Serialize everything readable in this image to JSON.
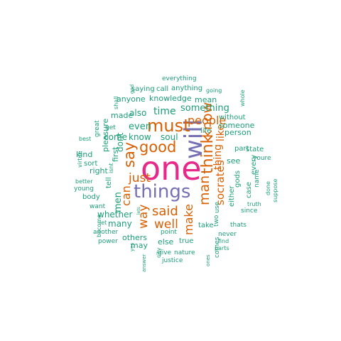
{
  "colors": {
    "teal": "#1b9e77",
    "orange": "#d95f02",
    "purple": "#7570b3",
    "pink": "#e7298a"
  },
  "words": [
    {
      "text": "one",
      "color": "pink"
    },
    {
      "text": "things",
      "color": "purple"
    },
    {
      "text": "will",
      "color": "purple"
    },
    {
      "text": "must",
      "color": "orange"
    },
    {
      "text": "good",
      "color": "orange"
    },
    {
      "text": "say",
      "color": "orange"
    },
    {
      "text": "think",
      "color": "orange"
    },
    {
      "text": "know",
      "color": "orange"
    },
    {
      "text": "man",
      "color": "orange"
    },
    {
      "text": "said",
      "color": "orange"
    },
    {
      "text": "just",
      "color": "orange"
    },
    {
      "text": "well",
      "color": "orange"
    },
    {
      "text": "way",
      "color": "orange"
    },
    {
      "text": "make",
      "color": "orange"
    },
    {
      "text": "people",
      "color": "orange"
    },
    {
      "text": "can",
      "color": "orange"
    },
    {
      "text": "socrates",
      "color": "orange"
    },
    {
      "text": "thing",
      "color": "orange"
    },
    {
      "text": "like",
      "color": "orange"
    },
    {
      "text": "time",
      "color": "teal"
    },
    {
      "text": "something",
      "color": "teal"
    },
    {
      "text": "even",
      "color": "teal"
    },
    {
      "text": "also",
      "color": "teal"
    },
    {
      "text": "made",
      "color": "teal"
    },
    {
      "text": "know",
      "color": "teal"
    },
    {
      "text": "come",
      "color": "teal"
    },
    {
      "text": "soul",
      "color": "teal"
    },
    {
      "text": "life",
      "color": "teal"
    },
    {
      "text": "person",
      "color": "teal"
    },
    {
      "text": "someone",
      "color": "teal"
    },
    {
      "text": "without",
      "color": "teal"
    },
    {
      "text": "see",
      "color": "teal"
    },
    {
      "text": "part",
      "color": "teal"
    },
    {
      "text": "gods",
      "color": "teal"
    },
    {
      "text": "case",
      "color": "teal"
    },
    {
      "text": "either",
      "color": "teal"
    },
    {
      "text": "every",
      "color": "teal"
    },
    {
      "text": "state",
      "color": "teal"
    },
    {
      "text": "youre",
      "color": "teal"
    },
    {
      "text": "name",
      "color": "teal"
    },
    {
      "text": "done",
      "color": "teal"
    },
    {
      "text": "suppose",
      "color": "teal"
    },
    {
      "text": "since",
      "color": "teal"
    },
    {
      "text": "truth",
      "color": "teal"
    },
    {
      "text": "thats",
      "color": "teal"
    },
    {
      "text": "never",
      "color": "teal"
    },
    {
      "text": "find",
      "color": "teal"
    },
    {
      "text": "parts",
      "color": "teal"
    },
    {
      "text": "use",
      "color": "teal"
    },
    {
      "text": "two",
      "color": "teal"
    },
    {
      "text": "take",
      "color": "teal"
    },
    {
      "text": "comes",
      "color": "teal"
    },
    {
      "text": "ones",
      "color": "teal"
    },
    {
      "text": "true",
      "color": "teal"
    },
    {
      "text": "else",
      "color": "teal"
    },
    {
      "text": "point",
      "color": "teal"
    },
    {
      "text": "nature",
      "color": "teal"
    },
    {
      "text": "give",
      "color": "teal"
    },
    {
      "text": "city",
      "color": "teal"
    },
    {
      "text": "justice",
      "color": "teal"
    },
    {
      "text": "may",
      "color": "teal"
    },
    {
      "text": "others",
      "color": "teal"
    },
    {
      "text": "many",
      "color": "teal"
    },
    {
      "text": "whether",
      "color": "teal"
    },
    {
      "text": "men",
      "color": "teal"
    },
    {
      "text": "want",
      "color": "teal"
    },
    {
      "text": "lets",
      "color": "teal"
    },
    {
      "text": "let",
      "color": "teal"
    },
    {
      "text": "another",
      "color": "teal"
    },
    {
      "text": "power",
      "color": "teal"
    },
    {
      "text": "yes",
      "color": "teal"
    },
    {
      "text": "answer",
      "color": "teal"
    },
    {
      "text": "become",
      "color": "teal"
    },
    {
      "text": "young",
      "color": "teal"
    },
    {
      "text": "body",
      "color": "teal"
    },
    {
      "text": "better",
      "color": "teal"
    },
    {
      "text": "virtue",
      "color": "teal"
    },
    {
      "text": "kind",
      "color": "teal"
    },
    {
      "text": "sort",
      "color": "teal"
    },
    {
      "text": "right",
      "color": "teal"
    },
    {
      "text": "tell",
      "color": "teal"
    },
    {
      "text": "isnt",
      "color": "teal"
    },
    {
      "text": "first",
      "color": "teal"
    },
    {
      "text": "dont",
      "color": "teal"
    },
    {
      "text": "pleasure",
      "color": "teal"
    },
    {
      "text": "great",
      "color": "teal"
    },
    {
      "text": "best",
      "color": "teal"
    },
    {
      "text": "get",
      "color": "teal"
    },
    {
      "text": "shall",
      "color": "teal"
    },
    {
      "text": "god",
      "color": "teal"
    },
    {
      "text": "saying",
      "color": "teal"
    },
    {
      "text": "call",
      "color": "teal"
    },
    {
      "text": "anything",
      "color": "teal"
    },
    {
      "text": "everything",
      "color": "teal"
    },
    {
      "text": "going",
      "color": "teal"
    },
    {
      "text": "knowledge",
      "color": "teal"
    },
    {
      "text": "anyone",
      "color": "teal"
    },
    {
      "text": "mean",
      "color": "teal"
    },
    {
      "text": "whole",
      "color": "teal"
    }
  ]
}
